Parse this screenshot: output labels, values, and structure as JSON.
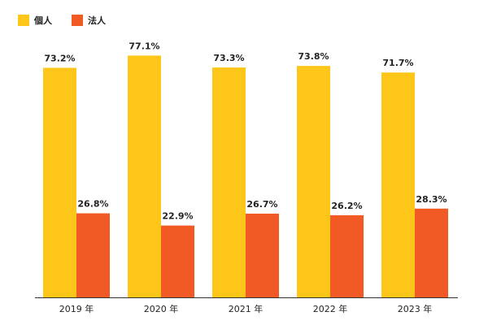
{
  "chart_data": {
    "type": "bar",
    "categories": [
      "2019 年",
      "2020 年",
      "2021 年",
      "2022 年",
      "2023 年"
    ],
    "series": [
      {
        "name": "個人",
        "values": [
          73.2,
          77.1,
          73.3,
          73.8,
          71.7
        ],
        "labels": [
          "73.2%",
          "77.1%",
          "73.3%",
          "73.8%",
          "71.7%"
        ],
        "color": "#FFC61A"
      },
      {
        "name": "法人",
        "values": [
          26.8,
          22.9,
          26.7,
          26.2,
          28.3
        ],
        "labels": [
          "26.8%",
          "22.9%",
          "26.7%",
          "26.2%",
          "28.3%"
        ],
        "color": "#F15A24"
      }
    ],
    "ylim": [
      0,
      80
    ],
    "grid": false,
    "legend_position": "top-left"
  }
}
